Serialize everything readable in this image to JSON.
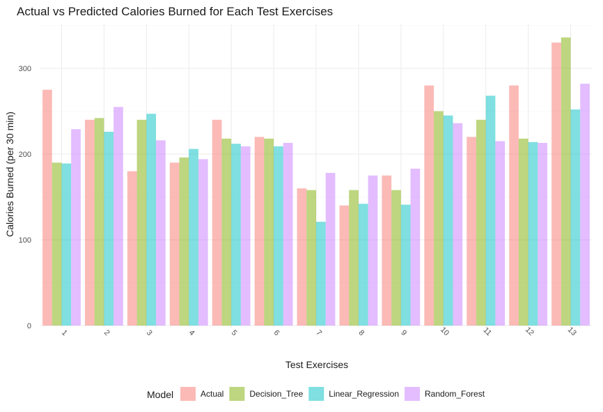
{
  "chart_data": {
    "type": "bar",
    "title": "Actual vs Predicted Calories Burned for Each Test Exercises",
    "xlabel": "Test Exercises",
    "ylabel": "Calories Burned (per 30 min)",
    "ylim": [
      0,
      350
    ],
    "yticks": [
      0,
      100,
      200,
      300
    ],
    "categories": [
      "1",
      "2",
      "3",
      "4",
      "5",
      "6",
      "7",
      "8",
      "9",
      "10",
      "11",
      "12",
      "13"
    ],
    "series": [
      {
        "name": "Actual",
        "color": "#F8766D",
        "values": [
          275,
          240,
          180,
          190,
          240,
          220,
          160,
          140,
          175,
          280,
          220,
          280,
          330
        ]
      },
      {
        "name": "Decision_Tree",
        "color": "#7CAE00",
        "values": [
          190,
          242,
          240,
          196,
          218,
          218,
          158,
          158,
          158,
          250,
          240,
          218,
          336
        ]
      },
      {
        "name": "Linear_Regression",
        "color": "#00BFC4",
        "values": [
          189,
          226,
          247,
          206,
          212,
          209,
          121,
          142,
          141,
          245,
          268,
          214,
          252
        ]
      },
      {
        "name": "Random_Forest",
        "color": "#C77CFF",
        "values": [
          229,
          255,
          216,
          194,
          209,
          213,
          178,
          175,
          183,
          236,
          215,
          213,
          282
        ]
      }
    ],
    "grid": true,
    "legend": {
      "title": "Model",
      "position": "bottom"
    }
  }
}
